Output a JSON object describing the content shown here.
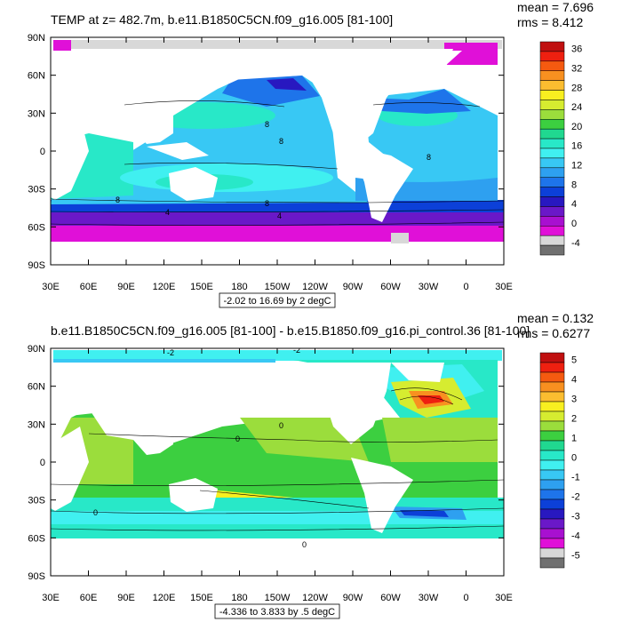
{
  "chart_data": [
    {
      "type": "heatmap",
      "title": "TEMP at z= 482.7m, b.e11.B1850C5CN.f09_g16.005 [81-100]",
      "stats": {
        "mean": "mean = 7.696",
        "rms": "rms = 8.412"
      },
      "x_ticks": [
        "30E",
        "60E",
        "90E",
        "120E",
        "150E",
        "180",
        "150W",
        "120W",
        "90W",
        "60W",
        "30W",
        "0",
        "30E"
      ],
      "y_ticks": [
        "90N",
        "60N",
        "30N",
        "0",
        "30S",
        "60S",
        "90S"
      ],
      "xlim": [
        30,
        390
      ],
      "ylim": [
        -90,
        90
      ],
      "colorbar_levels": [
        "36",
        "32",
        "28",
        "24",
        "20",
        "16",
        "12",
        "8",
        "4",
        "0",
        "-4"
      ],
      "colorbar_colors": [
        "#c01010",
        "#ee2010",
        "#f55a10",
        "#f89020",
        "#fbbd30",
        "#f8ef20",
        "#d6ec30",
        "#9bdd3c",
        "#3ccf40",
        "#20d890",
        "#28e8c8",
        "#40f0f0",
        "#38c8f4",
        "#2ea0f0",
        "#1e74ea",
        "#0c40d8",
        "#2818c0",
        "#6a18c8",
        "#a810d0",
        "#e010d8",
        "#d8d8d8",
        "#707070"
      ],
      "contour_labels": [
        "8",
        "8",
        "8",
        "8",
        "4",
        "4",
        "8"
      ],
      "range_label": "-2.02 to 16.69 by 2 degC"
    },
    {
      "type": "heatmap",
      "title": "b.e11.B1850C5CN.f09_g16.005 [81-100] - b.e15.B1850.f09_g16.pi_control.36 [81-100]",
      "stats": {
        "mean": "mean = 0.132",
        "rms": "rms = 0.6277"
      },
      "x_ticks": [
        "30E",
        "60E",
        "90E",
        "120E",
        "150E",
        "180",
        "150W",
        "120W",
        "90W",
        "60W",
        "30W",
        "0",
        "30E"
      ],
      "y_ticks": [
        "90N",
        "60N",
        "30N",
        "0",
        "30S",
        "60S",
        "90S"
      ],
      "xlim": [
        30,
        390
      ],
      "ylim": [
        -90,
        90
      ],
      "colorbar_levels": [
        "5",
        "4",
        "3",
        "2",
        "1",
        "0",
        "-1",
        "-2",
        "-3",
        "-4",
        "-5"
      ],
      "colorbar_colors": [
        "#c01010",
        "#ee2010",
        "#f55a10",
        "#f89020",
        "#fbbd30",
        "#f8ef20",
        "#d6ec30",
        "#9bdd3c",
        "#3ccf40",
        "#20d890",
        "#28e8c8",
        "#40f0f0",
        "#38c8f4",
        "#2ea0f0",
        "#1e74ea",
        "#0c40d8",
        "#2818c0",
        "#6a18c8",
        "#a810d0",
        "#e010d8",
        "#d8d8d8",
        "#707070"
      ],
      "contour_labels": [
        "-2",
        "0",
        "0",
        "0",
        "0",
        "-2"
      ],
      "range_label": "-4.336 to 3.833 by .5 degC"
    }
  ]
}
